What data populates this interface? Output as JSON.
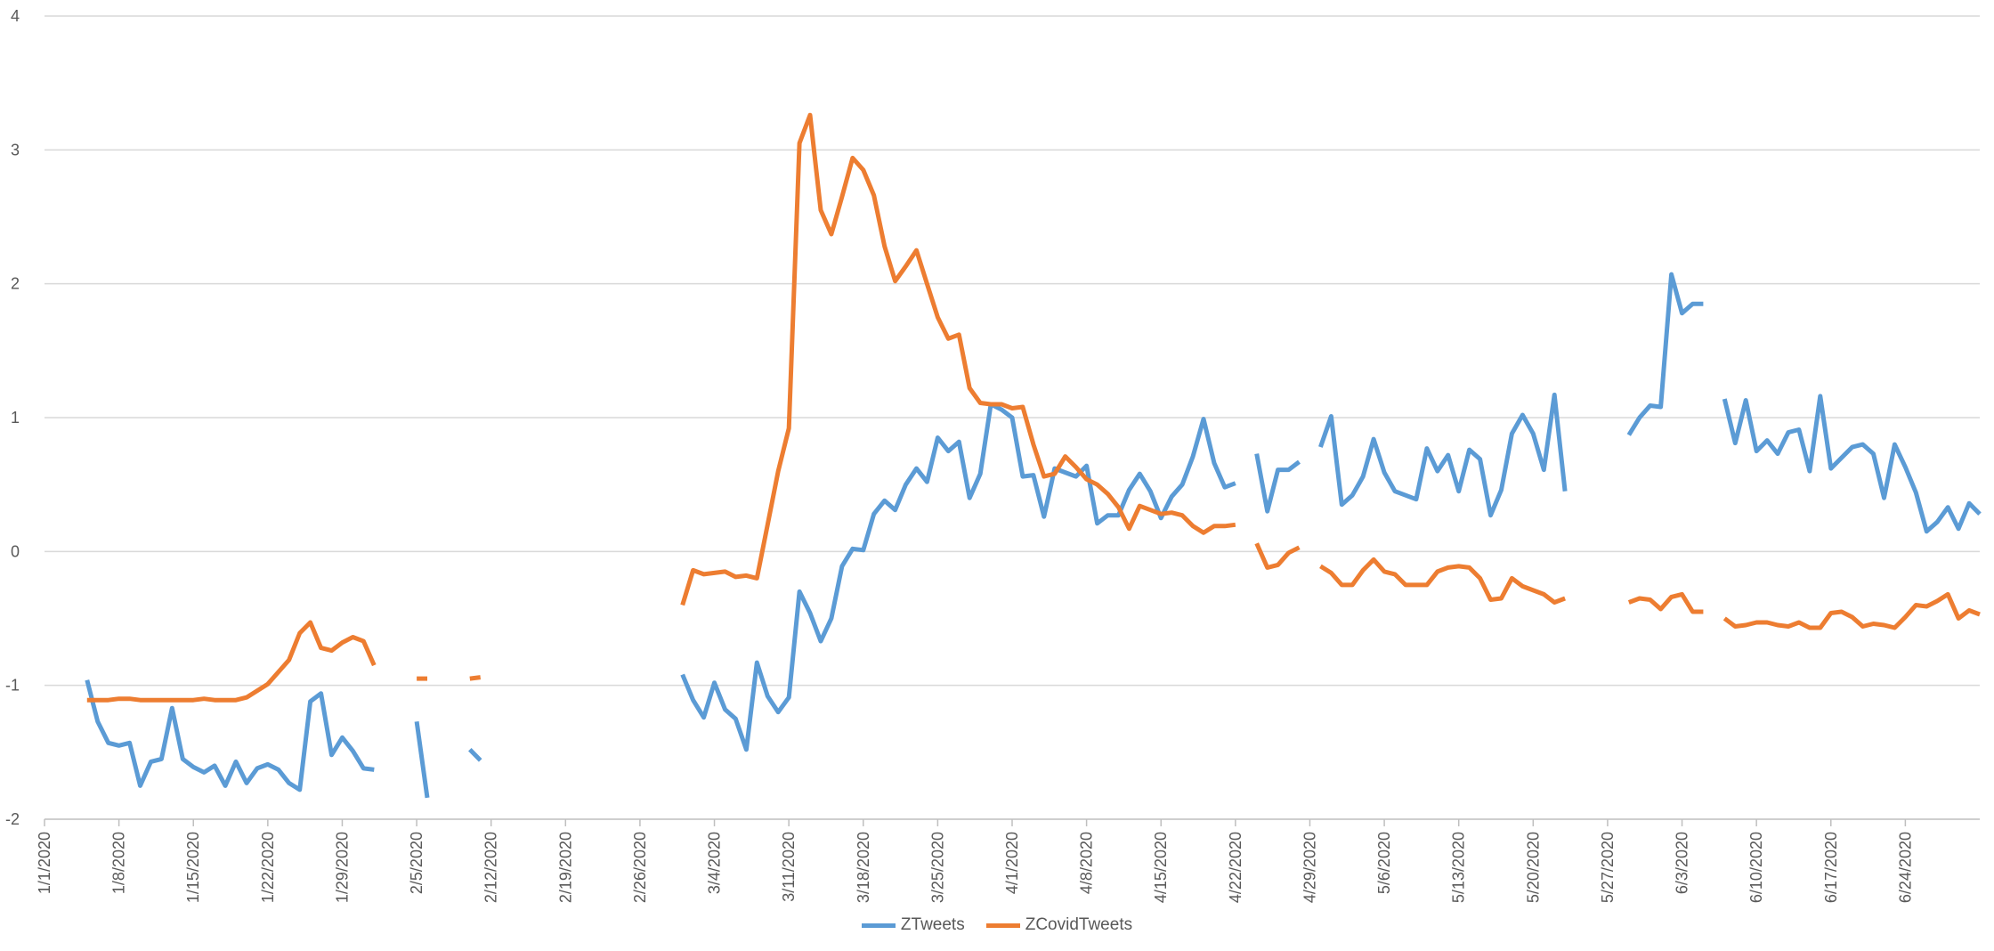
{
  "chart_data": {
    "type": "line",
    "title": "",
    "xlabel": "",
    "ylabel": "",
    "ylim": [
      -2,
      4
    ],
    "y_ticks": [
      "-2",
      "-1",
      "0",
      "1",
      "2",
      "3",
      "4"
    ],
    "x_range": [
      "1/1/2020",
      "6/30/2020"
    ],
    "x_tick_labels": [
      "1/1/2020",
      "1/8/2020",
      "1/15/2020",
      "1/22/2020",
      "1/29/2020",
      "2/5/2020",
      "2/12/2020",
      "2/19/2020",
      "2/26/2020",
      "3/4/2020",
      "3/11/2020",
      "3/18/2020",
      "3/25/2020",
      "4/1/2020",
      "4/8/2020",
      "4/15/2020",
      "4/22/2020",
      "4/29/2020",
      "5/6/2020",
      "5/13/2020",
      "5/20/2020",
      "5/27/2020",
      "6/3/2020",
      "6/10/2020",
      "6/17/2020",
      "6/24/2020"
    ],
    "grid": true,
    "legend_position": "bottom",
    "colors": {
      "ZTweets": "#5B9BD5",
      "ZCovidTweets": "#ED7D31",
      "grid": "#D9D9D9",
      "axis": "#BFBFBF"
    },
    "series": [
      {
        "name": "ZTweets",
        "segments": [
          {
            "x": [
              "1/5/2020",
              "1/6/2020",
              "1/7/2020",
              "1/8/2020",
              "1/9/2020",
              "1/10/2020",
              "1/11/2020",
              "1/12/2020",
              "1/13/2020",
              "1/14/2020",
              "1/15/2020",
              "1/16/2020",
              "1/17/2020",
              "1/18/2020",
              "1/19/2020",
              "1/20/2020",
              "1/21/2020",
              "1/22/2020",
              "1/23/2020",
              "1/24/2020",
              "1/25/2020",
              "1/26/2020",
              "1/27/2020",
              "1/28/2020",
              "1/29/2020",
              "1/30/2020",
              "1/31/2020",
              "2/1/2020"
            ],
            "y": [
              -0.96,
              -1.27,
              -1.43,
              -1.45,
              -1.43,
              -1.75,
              -1.57,
              -1.55,
              -1.17,
              -1.55,
              -1.61,
              -1.65,
              -1.6,
              -1.75,
              -1.57,
              -1.73,
              -1.62,
              -1.59,
              -1.63,
              -1.73,
              -1.78,
              -1.12,
              -1.06,
              -1.52,
              -1.39,
              -1.49,
              -1.62,
              -1.63
            ]
          },
          {
            "x": [
              "2/5/2020",
              "2/6/2020"
            ],
            "y": [
              -1.27,
              -1.84
            ]
          },
          {
            "x": [
              "2/10/2020",
              "2/11/2020"
            ],
            "y": [
              -1.48,
              -1.56
            ]
          },
          {
            "x": [
              "3/1/2020",
              "3/2/2020",
              "3/3/2020",
              "3/4/2020",
              "3/5/2020",
              "3/6/2020",
              "3/7/2020",
              "3/8/2020",
              "3/9/2020",
              "3/10/2020",
              "3/11/2020",
              "3/12/2020",
              "3/13/2020",
              "3/14/2020",
              "3/15/2020",
              "3/16/2020",
              "3/17/2020",
              "3/18/2020",
              "3/19/2020",
              "3/20/2020",
              "3/21/2020",
              "3/22/2020",
              "3/23/2020",
              "3/24/2020",
              "3/25/2020",
              "3/26/2020",
              "3/27/2020",
              "3/28/2020",
              "3/29/2020",
              "3/30/2020",
              "3/31/2020",
              "4/1/2020",
              "4/2/2020",
              "4/3/2020",
              "4/4/2020",
              "4/5/2020",
              "4/6/2020",
              "4/7/2020",
              "4/8/2020",
              "4/9/2020",
              "4/10/2020",
              "4/11/2020",
              "4/12/2020",
              "4/13/2020",
              "4/14/2020",
              "4/15/2020",
              "4/16/2020",
              "4/17/2020",
              "4/18/2020",
              "4/19/2020",
              "4/20/2020",
              "4/21/2020",
              "4/22/2020"
            ],
            "y": [
              -0.92,
              -1.11,
              -1.24,
              -0.98,
              -1.18,
              -1.25,
              -1.48,
              -0.83,
              -1.08,
              -1.2,
              -1.09,
              -0.3,
              -0.46,
              -0.67,
              -0.5,
              -0.11,
              0.02,
              0.01,
              0.28,
              0.38,
              0.31,
              0.5,
              0.62,
              0.52,
              0.85,
              0.75,
              0.82,
              0.4,
              0.58,
              1.1,
              1.06,
              1.0,
              0.56,
              0.57,
              0.26,
              0.62,
              0.59,
              0.56,
              0.64,
              0.21,
              0.27,
              0.27,
              0.46,
              0.58,
              0.45,
              0.25,
              0.41,
              0.5,
              0.71,
              0.99,
              0.66,
              0.48,
              0.51
            ]
          },
          {
            "x": [
              "4/24/2020",
              "4/25/2020",
              "4/26/2020",
              "4/27/2020",
              "4/28/2020"
            ],
            "y": [
              0.73,
              0.3,
              0.61,
              0.61,
              0.67
            ]
          },
          {
            "x": [
              "4/30/2020",
              "5/1/2020",
              "5/2/2020",
              "5/3/2020",
              "5/4/2020",
              "5/5/2020",
              "5/6/2020",
              "5/7/2020",
              "5/8/2020",
              "5/9/2020",
              "5/10/2020",
              "5/11/2020",
              "5/12/2020",
              "5/13/2020",
              "5/14/2020",
              "5/15/2020",
              "5/16/2020",
              "5/17/2020",
              "5/18/2020",
              "5/19/2020",
              "5/20/2020",
              "5/21/2020",
              "5/22/2020",
              "5/23/2020"
            ],
            "y": [
              0.78,
              1.01,
              0.35,
              0.42,
              0.56,
              0.84,
              0.59,
              0.45,
              0.42,
              0.39,
              0.77,
              0.6,
              0.72,
              0.45,
              0.76,
              0.69,
              0.27,
              0.46,
              0.88,
              1.02,
              0.88,
              0.61,
              1.17,
              0.45
            ]
          },
          {
            "x": [
              "5/29/2020",
              "5/30/2020",
              "5/31/2020",
              "6/1/2020",
              "6/2/2020",
              "6/3/2020",
              "6/4/2020",
              "6/5/2020"
            ],
            "y": [
              0.87,
              1.0,
              1.09,
              1.08,
              2.07,
              1.78,
              1.85,
              1.85
            ]
          },
          {
            "x": [
              "6/7/2020",
              "6/8/2020",
              "6/9/2020",
              "6/10/2020",
              "6/11/2020",
              "6/12/2020",
              "6/13/2020",
              "6/14/2020",
              "6/15/2020",
              "6/16/2020",
              "6/17/2020",
              "6/18/2020",
              "6/19/2020",
              "6/20/2020",
              "6/21/2020",
              "6/22/2020",
              "6/23/2020",
              "6/24/2020",
              "6/25/2020",
              "6/26/2020",
              "6/27/2020",
              "6/28/2020",
              "6/29/2020",
              "6/30/2020",
              "7/1/2020"
            ],
            "y": [
              1.14,
              0.81,
              1.13,
              0.75,
              0.83,
              0.73,
              0.89,
              0.91,
              0.6,
              1.16,
              0.62,
              0.7,
              0.78,
              0.8,
              0.73,
              0.4,
              0.8,
              0.63,
              0.44,
              0.15,
              0.22,
              0.33,
              0.17,
              0.36,
              0.28
            ]
          }
        ]
      },
      {
        "name": "ZCovidTweets",
        "segments": [
          {
            "x": [
              "1/5/2020",
              "1/6/2020",
              "1/7/2020",
              "1/8/2020",
              "1/9/2020",
              "1/10/2020",
              "1/11/2020",
              "1/12/2020",
              "1/13/2020",
              "1/14/2020",
              "1/15/2020",
              "1/16/2020",
              "1/17/2020",
              "1/18/2020",
              "1/19/2020",
              "1/20/2020",
              "1/21/2020",
              "1/22/2020",
              "1/23/2020",
              "1/24/2020",
              "1/25/2020",
              "1/26/2020",
              "1/27/2020",
              "1/28/2020",
              "1/29/2020",
              "1/30/2020",
              "1/31/2020",
              "2/1/2020"
            ],
            "y": [
              -1.11,
              -1.11,
              -1.11,
              -1.1,
              -1.1,
              -1.11,
              -1.11,
              -1.11,
              -1.11,
              -1.11,
              -1.11,
              -1.1,
              -1.11,
              -1.11,
              -1.11,
              -1.09,
              -1.04,
              -0.99,
              -0.9,
              -0.81,
              -0.61,
              -0.53,
              -0.72,
              -0.74,
              -0.68,
              -0.64,
              -0.67,
              -0.85
            ]
          },
          {
            "x": [
              "2/5/2020",
              "2/6/2020"
            ],
            "y": [
              -0.95,
              -0.95
            ]
          },
          {
            "x": [
              "2/10/2020",
              "2/11/2020"
            ],
            "y": [
              -0.95,
              -0.94
            ]
          },
          {
            "x": [
              "3/1/2020",
              "3/2/2020",
              "3/3/2020",
              "3/4/2020",
              "3/5/2020",
              "3/6/2020",
              "3/7/2020",
              "3/8/2020",
              "3/9/2020",
              "3/10/2020",
              "3/11/2020",
              "3/12/2020",
              "3/13/2020",
              "3/14/2020",
              "3/15/2020",
              "3/16/2020",
              "3/17/2020",
              "3/18/2020",
              "3/19/2020",
              "3/20/2020",
              "3/21/2020",
              "3/22/2020",
              "3/23/2020",
              "3/24/2020",
              "3/25/2020",
              "3/26/2020",
              "3/27/2020",
              "3/28/2020",
              "3/29/2020",
              "3/30/2020",
              "3/31/2020",
              "4/1/2020",
              "4/2/2020",
              "4/3/2020",
              "4/4/2020",
              "4/5/2020",
              "4/6/2020",
              "4/7/2020",
              "4/8/2020",
              "4/9/2020",
              "4/10/2020",
              "4/11/2020",
              "4/12/2020",
              "4/13/2020",
              "4/14/2020",
              "4/15/2020",
              "4/16/2020",
              "4/17/2020",
              "4/18/2020",
              "4/19/2020",
              "4/20/2020",
              "4/21/2020",
              "4/22/2020"
            ],
            "y": [
              -0.4,
              -0.14,
              -0.17,
              -0.16,
              -0.15,
              -0.19,
              -0.18,
              -0.2,
              0.2,
              0.6,
              0.92,
              3.05,
              3.26,
              2.55,
              2.37,
              2.65,
              2.94,
              2.85,
              2.66,
              2.28,
              2.02,
              2.13,
              2.25,
              2.0,
              1.75,
              1.59,
              1.62,
              1.22,
              1.11,
              1.1,
              1.1,
              1.07,
              1.08,
              0.8,
              0.56,
              0.58,
              0.71,
              0.63,
              0.54,
              0.5,
              0.43,
              0.33,
              0.17,
              0.34,
              0.31,
              0.28,
              0.29,
              0.27,
              0.19,
              0.14,
              0.19,
              0.19,
              0.2
            ]
          },
          {
            "x": [
              "4/24/2020",
              "4/25/2020",
              "4/26/2020",
              "4/27/2020",
              "4/28/2020"
            ],
            "y": [
              0.06,
              -0.12,
              -0.1,
              -0.01,
              0.03
            ]
          },
          {
            "x": [
              "4/30/2020",
              "5/1/2020",
              "5/2/2020",
              "5/3/2020",
              "5/4/2020",
              "5/5/2020",
              "5/6/2020",
              "5/7/2020",
              "5/8/2020",
              "5/9/2020",
              "5/10/2020",
              "5/11/2020",
              "5/12/2020",
              "5/13/2020",
              "5/14/2020",
              "5/15/2020",
              "5/16/2020",
              "5/17/2020",
              "5/18/2020",
              "5/19/2020",
              "5/20/2020",
              "5/21/2020",
              "5/22/2020",
              "5/23/2020"
            ],
            "y": [
              -0.11,
              -0.16,
              -0.25,
              -0.25,
              -0.14,
              -0.06,
              -0.15,
              -0.17,
              -0.25,
              -0.25,
              -0.25,
              -0.15,
              -0.12,
              -0.11,
              -0.12,
              -0.2,
              -0.36,
              -0.35,
              -0.2,
              -0.26,
              -0.29,
              -0.32,
              -0.38,
              -0.35
            ]
          },
          {
            "x": [
              "5/29/2020",
              "5/30/2020",
              "5/31/2020",
              "6/1/2020",
              "6/2/2020",
              "6/3/2020",
              "6/4/2020",
              "6/5/2020"
            ],
            "y": [
              -0.38,
              -0.35,
              -0.36,
              -0.43,
              -0.34,
              -0.32,
              -0.45,
              -0.45
            ]
          },
          {
            "x": [
              "6/7/2020",
              "6/8/2020",
              "6/9/2020",
              "6/10/2020",
              "6/11/2020",
              "6/12/2020",
              "6/13/2020",
              "6/14/2020",
              "6/15/2020",
              "6/16/2020",
              "6/17/2020",
              "6/18/2020",
              "6/19/2020",
              "6/20/2020",
              "6/21/2020",
              "6/22/2020",
              "6/23/2020",
              "6/24/2020",
              "6/25/2020",
              "6/26/2020",
              "6/27/2020",
              "6/28/2020",
              "6/29/2020",
              "6/30/2020",
              "7/1/2020"
            ],
            "y": [
              -0.5,
              -0.56,
              -0.55,
              -0.53,
              -0.53,
              -0.55,
              -0.56,
              -0.53,
              -0.57,
              -0.57,
              -0.46,
              -0.45,
              -0.49,
              -0.56,
              -0.54,
              -0.55,
              -0.57,
              -0.49,
              -0.4,
              -0.41,
              -0.37,
              -0.32,
              -0.5,
              -0.44,
              -0.47
            ]
          }
        ]
      }
    ]
  }
}
